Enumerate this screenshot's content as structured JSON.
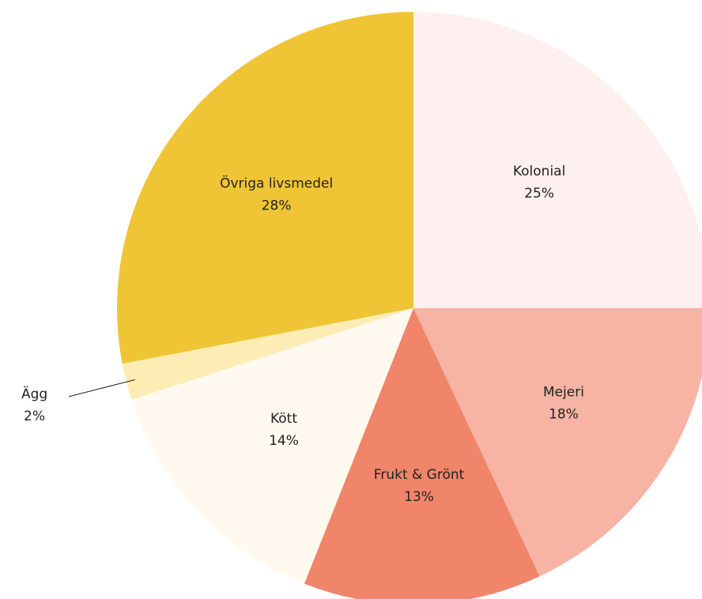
{
  "chart_data": {
    "type": "pie",
    "categories": [
      "Kolonial",
      "Mejeri",
      "Frukt & Grönt",
      "Kött",
      "Ägg",
      "Övriga livsmedel"
    ],
    "values": [
      25,
      18,
      13,
      14,
      2,
      28
    ],
    "value_labels": [
      "25%",
      "18%",
      "13%",
      "14%",
      "2%",
      "28%"
    ],
    "colors": [
      "#fdf0ee",
      "#f7b3a3",
      "#f0856a",
      "#fff9ef",
      "#fdedb5",
      "#f0c535"
    ]
  }
}
